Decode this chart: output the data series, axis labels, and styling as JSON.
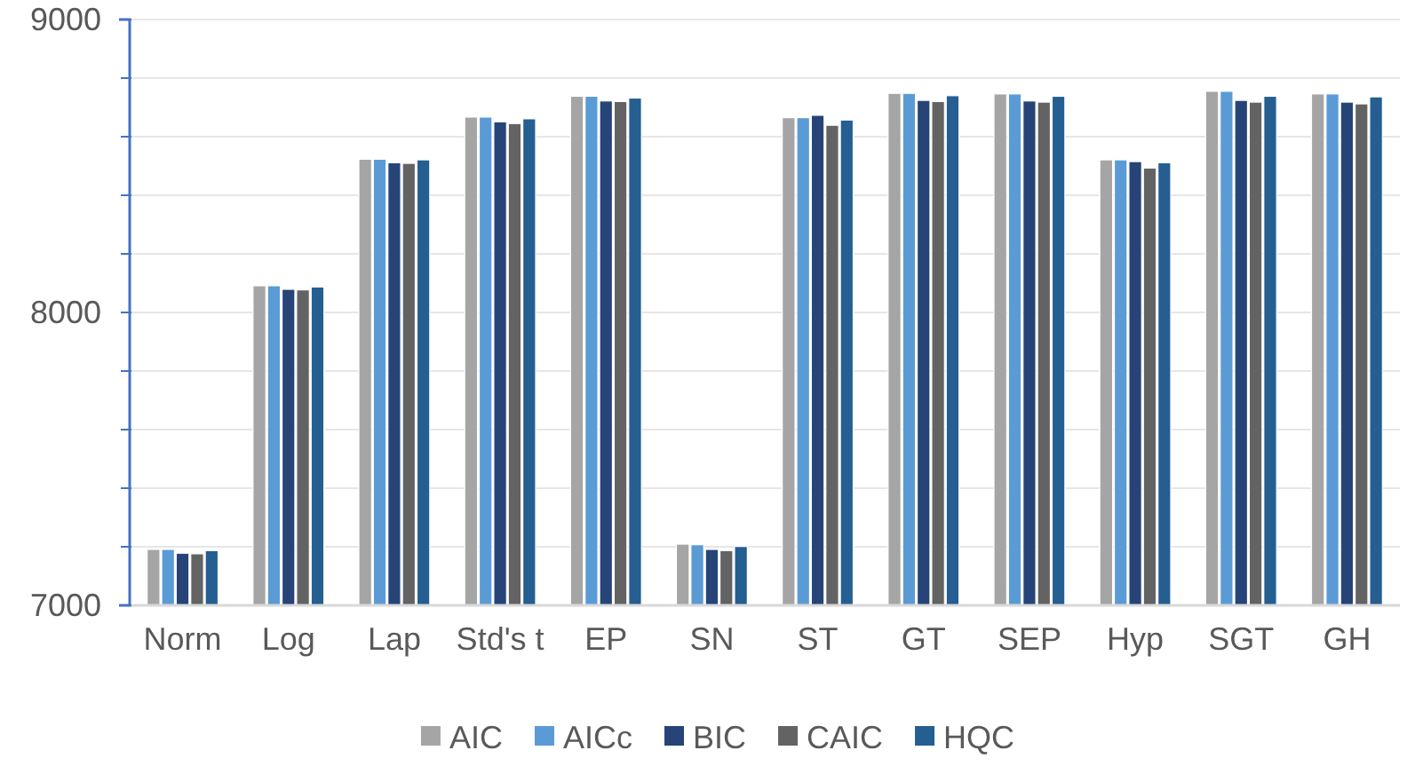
{
  "chart_data": {
    "type": "bar",
    "categories": [
      "Norm",
      "Log",
      "Lap",
      "Std's t",
      "EP",
      "SN",
      "ST",
      "GT",
      "SEP",
      "Hyp",
      "SGT",
      "GH"
    ],
    "series": [
      {
        "name": "AIC",
        "color": "#a5a5a5",
        "values": [
          7191,
          8091,
          8523,
          8667,
          8738,
          7209,
          8665,
          8748,
          8746,
          8521,
          8755,
          8746
        ]
      },
      {
        "name": "AICc",
        "color": "#5b9bd5",
        "values": [
          7191,
          8091,
          8523,
          8667,
          8738,
          7207,
          8665,
          8748,
          8746,
          8521,
          8755,
          8746
        ]
      },
      {
        "name": "BIC",
        "color": "#264478",
        "values": [
          7178,
          8079,
          8511,
          8651,
          8722,
          7191,
          8673,
          8724,
          8722,
          8515,
          8724,
          8718
        ]
      },
      {
        "name": "CAIC",
        "color": "#636363",
        "values": [
          7176,
          8077,
          8509,
          8645,
          8720,
          7187,
          8639,
          8720,
          8718,
          8493,
          8718,
          8712
        ]
      },
      {
        "name": "HQC",
        "color": "#255e91",
        "values": [
          7187,
          8087,
          8521,
          8661,
          8732,
          7201,
          8657,
          8740,
          8738,
          8511,
          8738,
          8736
        ]
      }
    ],
    "ylim": [
      7000,
      9000
    ],
    "yticks": [
      7000,
      {
        "value": 7200,
        "label": null
      },
      {
        "value": 7400,
        "label": null
      },
      {
        "value": 7600,
        "label": null
      },
      {
        "value": 7800,
        "label": null
      },
      8000,
      {
        "value": 8200,
        "label": null
      },
      {
        "value": 8400,
        "label": null
      },
      {
        "value": 8600,
        "label": null
      },
      {
        "value": 8800,
        "label": null
      },
      9000
    ],
    "grid": "y",
    "legend": "bottom"
  }
}
